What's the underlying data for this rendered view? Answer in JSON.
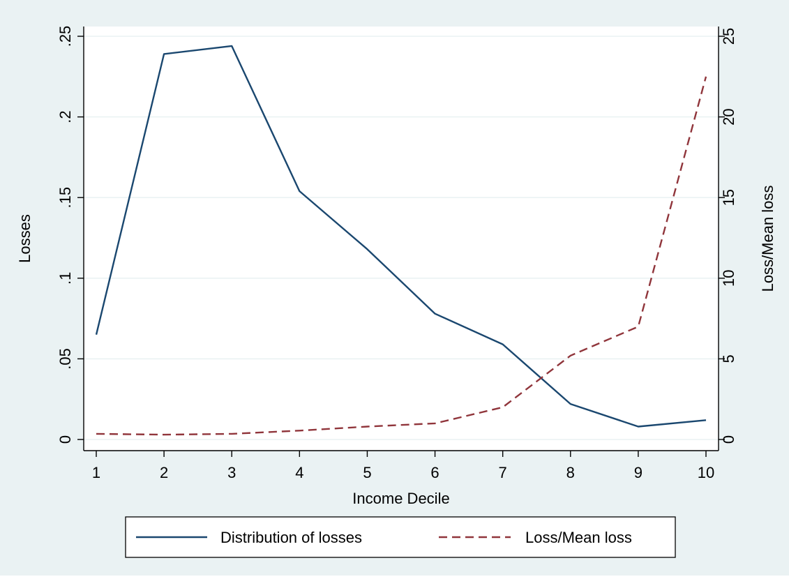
{
  "chart_data": {
    "type": "line",
    "x": [
      1,
      2,
      3,
      4,
      5,
      6,
      7,
      8,
      9,
      10
    ],
    "xlabel": "Income Decile",
    "xlim": [
      1,
      10
    ],
    "x_ticks": [
      "1",
      "2",
      "3",
      "4",
      "5",
      "6",
      "7",
      "8",
      "9",
      "10"
    ],
    "ylabel_left": "Losses",
    "ylim_left": [
      0,
      0.25
    ],
    "y_ticks_left": [
      {
        "value": 0,
        "label": "0"
      },
      {
        "value": 0.05,
        "label": ".05"
      },
      {
        "value": 0.1,
        "label": ".1"
      },
      {
        "value": 0.15,
        "label": ".15"
      },
      {
        "value": 0.2,
        "label": ".2"
      },
      {
        "value": 0.25,
        "label": ".25"
      }
    ],
    "ylabel_right": "Loss/Mean loss",
    "ylim_right": [
      0,
      25
    ],
    "y_ticks_right": [
      {
        "value": 0,
        "label": "0"
      },
      {
        "value": 5,
        "label": "5"
      },
      {
        "value": 10,
        "label": "10"
      },
      {
        "value": 15,
        "label": "15"
      },
      {
        "value": 20,
        "label": "20"
      },
      {
        "value": 25,
        "label": "25"
      }
    ],
    "grid": true,
    "legend_position": "bottom",
    "series": [
      {
        "name": "Distribution of losses",
        "axis": "left",
        "style": "solid",
        "color": "#1a476f",
        "values": [
          0.065,
          0.239,
          0.244,
          0.154,
          0.118,
          0.078,
          0.059,
          0.022,
          0.008,
          0.012
        ]
      },
      {
        "name": "Loss/Mean loss",
        "axis": "right",
        "style": "dashed",
        "color": "#90353b",
        "values": [
          0.35,
          0.3,
          0.35,
          0.55,
          0.8,
          1.0,
          2.0,
          5.2,
          7.0,
          22.5
        ]
      }
    ]
  },
  "colors": {
    "outer_background": "#eaf2f3",
    "plot_background": "#ffffff",
    "grid": "#eaf2f3"
  }
}
